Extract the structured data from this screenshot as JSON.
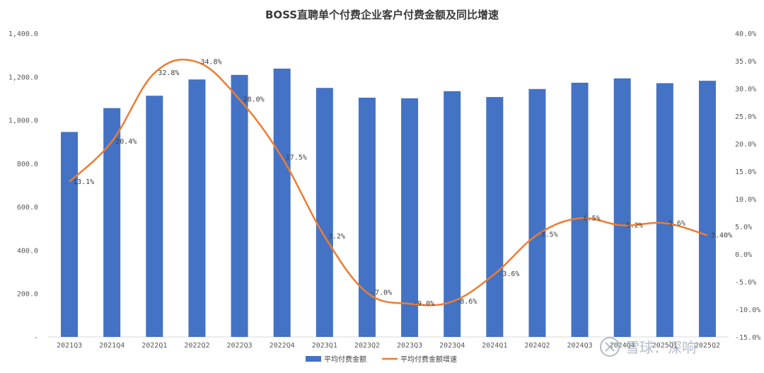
{
  "chart_data": {
    "type": "bar",
    "title": "BOSS直聘单个付费企业客户付费金额及同比增速",
    "categories": [
      "2021Q3",
      "2021Q4",
      "2022Q1",
      "2022Q2",
      "2022Q3",
      "2022Q4",
      "2023Q1",
      "2023Q2",
      "2023Q3",
      "2023Q4",
      "2024Q1",
      "2024Q2",
      "2024Q3",
      "2024Q4",
      "2025Q1",
      "2025Q2"
    ],
    "series": [
      {
        "name": "平均付费金额",
        "type": "bar",
        "axis": "left",
        "color": "#4472C4",
        "values": [
          945,
          1055,
          1112,
          1187,
          1208,
          1237,
          1148,
          1103,
          1100,
          1133,
          1106,
          1143,
          1172,
          1192,
          1170,
          1181
        ]
      },
      {
        "name": "平均付费金额增速",
        "type": "line",
        "axis": "right",
        "color": "#ED7D31",
        "values": [
          13.1,
          20.4,
          32.8,
          34.8,
          28.0,
          17.5,
          3.2,
          -7.0,
          -9.0,
          -8.6,
          -3.6,
          3.5,
          6.5,
          5.2,
          5.6,
          3.4
        ],
        "labels": [
          "13.1%",
          "20.4%",
          "32.8%",
          "34.8%",
          "28.0%",
          "17.5%",
          "3.2%",
          "-7.0%",
          "-9.0%",
          "-8.6%",
          "-3.6%",
          "3.5%",
          "6.5%",
          "5.2%",
          "5.6%",
          "3.40%"
        ]
      }
    ],
    "left_axis": {
      "ylim": [
        0,
        1400
      ],
      "ticks": [
        0,
        200,
        400,
        600,
        800,
        1000,
        1200,
        1400
      ],
      "tick_labels": [
        "-",
        "200.0",
        "400.0",
        "600.0",
        "800.0",
        "1,000.0",
        "1,200.0",
        "1,400.0"
      ]
    },
    "right_axis": {
      "ylim": [
        -15,
        40
      ],
      "ticks": [
        -15,
        -10,
        -5,
        0,
        5,
        10,
        15,
        20,
        25,
        30,
        35,
        40
      ],
      "tick_labels": [
        "-15.0%",
        "-10.0%",
        "-5.0%",
        "0.0%",
        "5.0%",
        "10.0%",
        "15.0%",
        "20.0%",
        "25.0%",
        "30.0%",
        "35.0%",
        "40.0%"
      ]
    },
    "grid": false,
    "legend": "bottom"
  },
  "watermark": {
    "text": "雪球：深响"
  }
}
